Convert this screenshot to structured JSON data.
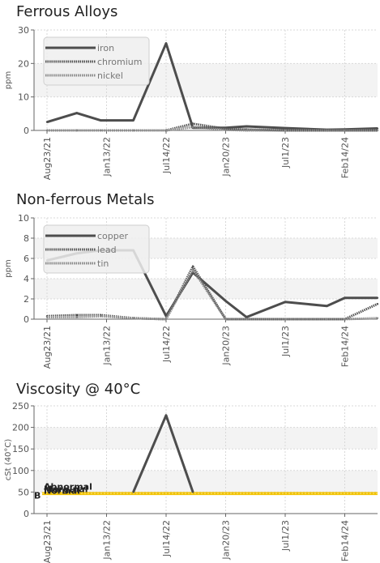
{
  "chart_data": [
    {
      "type": "line",
      "title": "Ferrous Alloys",
      "ylabel": "ppm",
      "ylim": [
        0,
        30
      ],
      "yticks": [
        "0",
        "10",
        "20",
        "30"
      ],
      "x_tick_labels": [
        "Aug23/21",
        "Jan13/22",
        "Jul14/22",
        "Jan20/23",
        "Jul1/23",
        "Feb14/24"
      ],
      "x_tick_positions": [
        0,
        1,
        2,
        3,
        4,
        5
      ],
      "x": [
        0,
        0.5,
        0.9,
        1.45,
        2.0,
        2.45,
        3.0,
        3.35,
        4.0,
        4.7,
        5.0,
        5.55
      ],
      "legend": "top-left",
      "grid": true,
      "series": [
        {
          "name": "iron",
          "color": "#4d4d4d",
          "style": "solid",
          "values": [
            2.5,
            5.2,
            3.0,
            3.0,
            26.0,
            0.8,
            0.8,
            1.2,
            0.7,
            0.2,
            0.3,
            0.6
          ]
        },
        {
          "name": "chromium",
          "color": "#555555",
          "style": "dotted",
          "values": [
            0,
            0,
            0,
            0,
            0,
            2.0,
            0.5,
            0.3,
            0,
            0,
            0,
            0
          ]
        },
        {
          "name": "nickel",
          "color": "#888888",
          "style": "dotted",
          "values": [
            0,
            0,
            0,
            0,
            0,
            1.0,
            0.2,
            0,
            0,
            0,
            0,
            0
          ]
        }
      ]
    },
    {
      "type": "line",
      "title": "Non-ferrous Metals",
      "ylabel": "ppm",
      "ylim": [
        0,
        10
      ],
      "yticks": [
        "0",
        "2",
        "4",
        "6",
        "8",
        "10"
      ],
      "x_tick_labels": [
        "Aug23/21",
        "Jan13/22",
        "Jul14/22",
        "Jan20/23",
        "Jul1/23",
        "Feb14/24"
      ],
      "x_tick_positions": [
        0,
        1,
        2,
        3,
        4,
        5
      ],
      "x": [
        0,
        0.5,
        0.9,
        1.45,
        2.0,
        2.45,
        3.0,
        3.35,
        4.0,
        4.7,
        5.0,
        5.55
      ],
      "legend": "top-left",
      "grid": true,
      "series": [
        {
          "name": "copper",
          "color": "#4d4d4d",
          "style": "solid",
          "values": [
            5.8,
            6.5,
            6.8,
            6.8,
            0.3,
            4.6,
            1.8,
            0.2,
            1.7,
            1.3,
            2.1,
            2.1
          ]
        },
        {
          "name": "lead",
          "color": "#555555",
          "style": "dotted",
          "values": [
            0.3,
            0.4,
            0.4,
            0.1,
            0,
            5.2,
            0,
            0,
            0,
            0,
            0,
            1.5
          ]
        },
        {
          "name": "tin",
          "color": "#888888",
          "style": "dotted",
          "values": [
            0.2,
            0.2,
            0.3,
            0.1,
            0,
            4.9,
            0,
            0,
            0,
            0,
            0,
            0.1
          ]
        }
      ]
    },
    {
      "type": "line",
      "title": "Viscosity @ 40°C",
      "ylabel": "cSt (40°C)",
      "ylim": [
        0,
        250
      ],
      "yticks": [
        "0",
        "50",
        "100",
        "150",
        "200",
        "250"
      ],
      "x_tick_labels": [
        "Aug23/21",
        "Jan13/22",
        "Jul14/22",
        "Jan20/23",
        "Jul1/23",
        "Feb14/24"
      ],
      "x_tick_positions": [
        0,
        1,
        2,
        3,
        4,
        5
      ],
      "grid": true,
      "reference_band": {
        "low": 43,
        "high": 50,
        "color": "#f2c200"
      },
      "reference_labels": [
        "Abnormal",
        "Marginal",
        "Normal",
        "B"
      ],
      "series": [
        {
          "name": "",
          "color": "#4d4d4d",
          "style": "solid",
          "x": [
            1.45,
            2.0,
            2.45
          ],
          "values": [
            50,
            228,
            50
          ]
        }
      ]
    }
  ]
}
